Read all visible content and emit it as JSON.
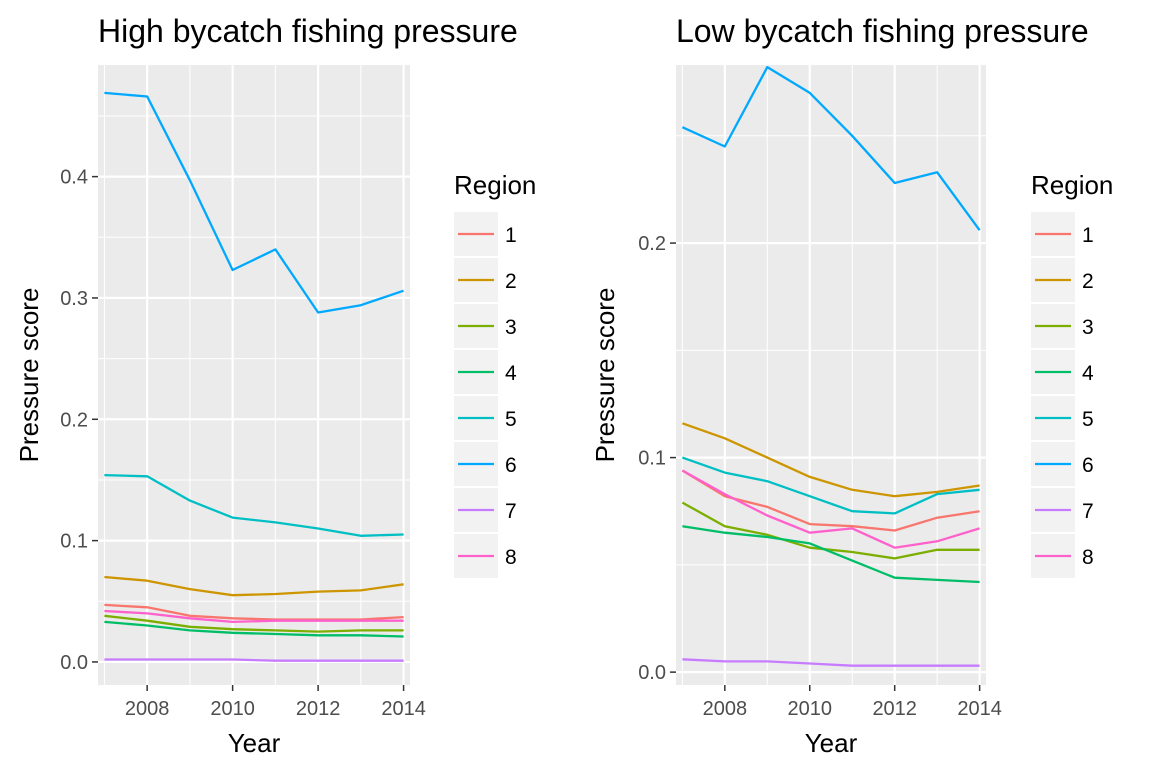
{
  "chart_data": [
    {
      "type": "line",
      "title": "High bycatch fishing pressure",
      "xlabel": "Year",
      "ylabel": "Pressure score",
      "xlim": [
        2006.85,
        2014.15
      ],
      "ylim": [
        -0.019,
        0.492
      ],
      "x_ticks": [
        2008,
        2010,
        2012,
        2014
      ],
      "y_ticks": [
        0.0,
        0.1,
        0.2,
        0.3,
        0.4
      ],
      "x_tick_labels": [
        "2008",
        "2010",
        "2012",
        "2014"
      ],
      "y_tick_labels": [
        "0.0",
        "0.1",
        "0.2",
        "0.3",
        "0.4"
      ],
      "grid": true,
      "legend_title": "Region",
      "legend_position": "right",
      "x": [
        2007,
        2008,
        2009,
        2010,
        2011,
        2012,
        2013,
        2014
      ],
      "series": [
        {
          "name": "1",
          "color": "#F8766D",
          "values": [
            0.047,
            0.045,
            0.038,
            0.036,
            0.035,
            0.035,
            0.035,
            0.037
          ]
        },
        {
          "name": "2",
          "color": "#CD9600",
          "values": [
            0.07,
            0.067,
            0.06,
            0.055,
            0.056,
            0.058,
            0.059,
            0.064
          ]
        },
        {
          "name": "3",
          "color": "#7CAE00",
          "values": [
            0.038,
            0.034,
            0.029,
            0.027,
            0.026,
            0.025,
            0.026,
            0.026
          ]
        },
        {
          "name": "4",
          "color": "#00BE67",
          "values": [
            0.033,
            0.03,
            0.026,
            0.024,
            0.023,
            0.022,
            0.022,
            0.021
          ]
        },
        {
          "name": "5",
          "color": "#00BFC4",
          "values": [
            0.154,
            0.153,
            0.133,
            0.119,
            0.115,
            0.11,
            0.104,
            0.105
          ]
        },
        {
          "name": "6",
          "color": "#00A9FF",
          "values": [
            0.469,
            0.466,
            0.397,
            0.323,
            0.34,
            0.288,
            0.294,
            0.306
          ]
        },
        {
          "name": "7",
          "color": "#C77CFF",
          "values": [
            0.002,
            0.002,
            0.002,
            0.002,
            0.001,
            0.001,
            0.001,
            0.001
          ]
        },
        {
          "name": "8",
          "color": "#FF61CC",
          "values": [
            0.042,
            0.04,
            0.036,
            0.033,
            0.034,
            0.034,
            0.034,
            0.034
          ]
        }
      ]
    },
    {
      "type": "line",
      "title": "Low bycatch fishing pressure",
      "xlabel": "Year",
      "ylabel": "Pressure score",
      "xlim": [
        2006.85,
        2014.15
      ],
      "ylim": [
        -0.006,
        0.283
      ],
      "x_ticks": [
        2008,
        2010,
        2012,
        2014
      ],
      "y_ticks": [
        0.0,
        0.1,
        0.2
      ],
      "x_tick_labels": [
        "2008",
        "2010",
        "2012",
        "2014"
      ],
      "y_tick_labels": [
        "0.0",
        "0.1",
        "0.2"
      ],
      "grid": true,
      "legend_title": "Region",
      "legend_position": "right",
      "x": [
        2007,
        2008,
        2009,
        2010,
        2011,
        2012,
        2013,
        2014
      ],
      "series": [
        {
          "name": "1",
          "color": "#F8766D",
          "values": [
            0.094,
            0.082,
            0.077,
            0.069,
            0.068,
            0.066,
            0.072,
            0.075
          ]
        },
        {
          "name": "2",
          "color": "#CD9600",
          "values": [
            0.116,
            0.109,
            0.1,
            0.091,
            0.085,
            0.082,
            0.084,
            0.087
          ]
        },
        {
          "name": "3",
          "color": "#7CAE00",
          "values": [
            0.079,
            0.068,
            0.064,
            0.058,
            0.056,
            0.053,
            0.057,
            0.057
          ]
        },
        {
          "name": "4",
          "color": "#00BE67",
          "values": [
            0.068,
            0.065,
            0.063,
            0.06,
            0.052,
            0.044,
            0.043,
            0.042
          ]
        },
        {
          "name": "5",
          "color": "#00BFC4",
          "values": [
            0.1,
            0.093,
            0.089,
            0.082,
            0.075,
            0.074,
            0.083,
            0.085
          ]
        },
        {
          "name": "6",
          "color": "#00A9FF",
          "values": [
            0.254,
            0.245,
            0.282,
            0.27,
            0.25,
            0.228,
            0.233,
            0.206
          ]
        },
        {
          "name": "7",
          "color": "#C77CFF",
          "values": [
            0.006,
            0.005,
            0.005,
            0.004,
            0.003,
            0.003,
            0.003,
            0.003
          ]
        },
        {
          "name": "8",
          "color": "#FF61CC",
          "values": [
            0.094,
            0.083,
            0.073,
            0.065,
            0.067,
            0.058,
            0.061,
            0.067
          ]
        }
      ]
    }
  ]
}
